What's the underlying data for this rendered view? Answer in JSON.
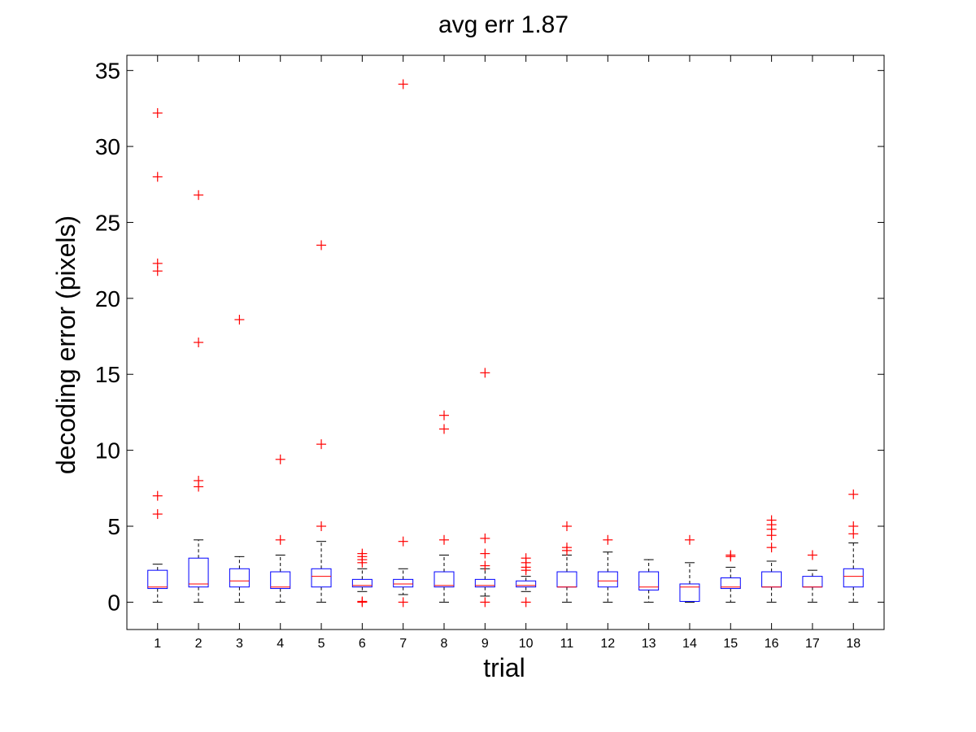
{
  "chart_data": {
    "type": "box",
    "title": "avg err 1.87",
    "xlabel": "trial",
    "ylabel": "decoding error (pixels)",
    "ylim": [
      -1.8,
      36
    ],
    "yticks": [
      0,
      5,
      10,
      15,
      20,
      25,
      30,
      35
    ],
    "categories": [
      "1",
      "2",
      "3",
      "4",
      "5",
      "6",
      "7",
      "8",
      "9",
      "10",
      "11",
      "12",
      "13",
      "14",
      "15",
      "16",
      "17",
      "18"
    ],
    "box_color": "#0000ff",
    "median_color": "#ff0000",
    "outlier_color": "#ff0000",
    "whisker_color": "#000000",
    "boxes": [
      {
        "trial": "1",
        "whisker_low": 0,
        "q1": 0.9,
        "median": 1.0,
        "q3": 2.1,
        "whisker_high": 2.5,
        "outliers": [
          5.8,
          7.0,
          21.8,
          22.3,
          28.0,
          32.2
        ]
      },
      {
        "trial": "2",
        "whisker_low": 0,
        "q1": 1.0,
        "median": 1.2,
        "q3": 2.9,
        "whisker_high": 4.1,
        "outliers": [
          7.6,
          8.0,
          17.1,
          26.8
        ]
      },
      {
        "trial": "3",
        "whisker_low": 0,
        "q1": 1.0,
        "median": 1.4,
        "q3": 2.2,
        "whisker_high": 3.0,
        "outliers": [
          18.6
        ]
      },
      {
        "trial": "4",
        "whisker_low": 0,
        "q1": 0.9,
        "median": 1.0,
        "q3": 2.0,
        "whisker_high": 3.1,
        "outliers": [
          4.1,
          9.4
        ]
      },
      {
        "trial": "5",
        "whisker_low": 0,
        "q1": 1.0,
        "median": 1.7,
        "q3": 2.2,
        "whisker_high": 4.0,
        "outliers": [
          5.0,
          10.4,
          23.5
        ]
      },
      {
        "trial": "6",
        "whisker_low": 0.7,
        "q1": 1.0,
        "median": 1.1,
        "q3": 1.5,
        "whisker_high": 2.2,
        "outliers": [
          0.0,
          0.05,
          2.6,
          2.8,
          3.0,
          3.2
        ]
      },
      {
        "trial": "7",
        "whisker_low": 0.5,
        "q1": 1.0,
        "median": 1.2,
        "q3": 1.5,
        "whisker_high": 2.2,
        "outliers": [
          0.0,
          4.0,
          34.1
        ]
      },
      {
        "trial": "8",
        "whisker_low": 0,
        "q1": 1.0,
        "median": 1.1,
        "q3": 2.0,
        "whisker_high": 3.1,
        "outliers": [
          4.1,
          11.4,
          12.3
        ]
      },
      {
        "trial": "9",
        "whisker_low": 0.4,
        "q1": 1.0,
        "median": 1.1,
        "q3": 1.5,
        "whisker_high": 2.2,
        "outliers": [
          0.0,
          2.4,
          3.2,
          4.2,
          15.1
        ]
      },
      {
        "trial": "10",
        "whisker_low": 0.7,
        "q1": 1.0,
        "median": 1.1,
        "q3": 1.4,
        "whisker_high": 1.7,
        "outliers": [
          0.0,
          2.1,
          2.3,
          2.6,
          2.9
        ]
      },
      {
        "trial": "11",
        "whisker_low": 0,
        "q1": 1.0,
        "median": 1.0,
        "q3": 2.0,
        "whisker_high": 3.1,
        "outliers": [
          3.4,
          3.6,
          5.0
        ]
      },
      {
        "trial": "12",
        "whisker_low": 0,
        "q1": 1.0,
        "median": 1.4,
        "q3": 2.0,
        "whisker_high": 3.3,
        "outliers": [
          4.1
        ]
      },
      {
        "trial": "13",
        "whisker_low": 0,
        "q1": 0.8,
        "median": 1.0,
        "q3": 2.0,
        "whisker_high": 2.8,
        "outliers": []
      },
      {
        "trial": "14",
        "whisker_low": 0,
        "q1": 0.05,
        "median": 1.0,
        "q3": 1.2,
        "whisker_high": 2.6,
        "outliers": [
          4.1
        ]
      },
      {
        "trial": "15",
        "whisker_low": 0,
        "q1": 0.9,
        "median": 1.0,
        "q3": 1.6,
        "whisker_high": 2.3,
        "outliers": [
          3.0,
          3.1
        ]
      },
      {
        "trial": "16",
        "whisker_low": 0,
        "q1": 1.0,
        "median": 1.0,
        "q3": 2.0,
        "whisker_high": 2.7,
        "outliers": [
          3.6,
          4.4,
          4.8,
          5.1,
          5.4
        ]
      },
      {
        "trial": "17",
        "whisker_low": 0,
        "q1": 1.0,
        "median": 1.0,
        "q3": 1.7,
        "whisker_high": 2.1,
        "outliers": [
          3.1
        ]
      },
      {
        "trial": "18",
        "whisker_low": 0,
        "q1": 1.0,
        "median": 1.7,
        "q3": 2.2,
        "whisker_high": 3.9,
        "outliers": [
          4.5,
          5.0,
          7.1
        ]
      }
    ]
  }
}
